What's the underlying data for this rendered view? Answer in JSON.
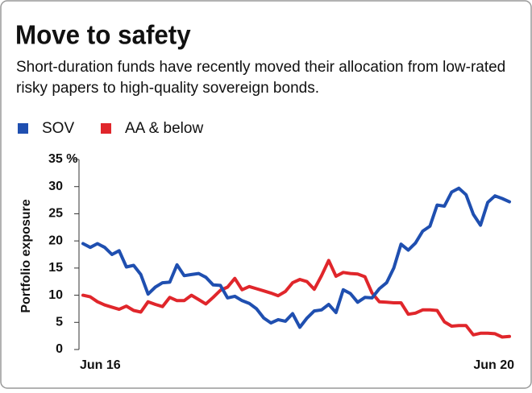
{
  "chart_data": {
    "type": "line",
    "title": "Move to safety",
    "subtitle": [
      "Short-duration funds have recently moved their allocation from low-rated",
      "risky papers to high-quality sovereign bonds."
    ],
    "y_label": "Portfolio exposure",
    "categories": [
      "Jun 16",
      null,
      null,
      null,
      null,
      null,
      null,
      null,
      null,
      null,
      null,
      null,
      null,
      null,
      null,
      null,
      null,
      null,
      null,
      null,
      null,
      null,
      null,
      null,
      null,
      null,
      null,
      null,
      null,
      null,
      null,
      null,
      null,
      null,
      null,
      null,
      null,
      null,
      null,
      null,
      null,
      null,
      null,
      null,
      null,
      null,
      null,
      null,
      null,
      null,
      null,
      null,
      null,
      null,
      null,
      null,
      null,
      null,
      null,
      "Jun 20"
    ],
    "series": [
      {
        "name": "SOV",
        "color": "#1f4fb0",
        "values": [
          19.5,
          18.8,
          19.5,
          18.8,
          17.5,
          18.2,
          15.2,
          15.5,
          13.8,
          10.2,
          11.5,
          12.3,
          12.4,
          15.6,
          13.6,
          13.8,
          14.0,
          13.3,
          11.9,
          11.8,
          9.5,
          9.8,
          9.0,
          8.5,
          7.5,
          5.8,
          4.9,
          5.5,
          5.2,
          6.6,
          4.1,
          5.8,
          7.1,
          7.3,
          8.3,
          6.8,
          11.0,
          10.3,
          8.7,
          9.6,
          9.5,
          11.2,
          12.3,
          15.0,
          19.4,
          18.3,
          19.6,
          21.8,
          22.7,
          26.6,
          26.4,
          29.0,
          29.7,
          28.5,
          24.9,
          22.9,
          27.1,
          28.3,
          27.8,
          27.2
        ]
      },
      {
        "name": "AA & below",
        "color": "#e0262b",
        "values": [
          10.0,
          9.7,
          8.8,
          8.2,
          7.8,
          7.4,
          8.0,
          7.2,
          6.9,
          8.8,
          8.3,
          7.9,
          9.6,
          9.0,
          9.0,
          10.0,
          9.2,
          8.4,
          9.6,
          10.9,
          11.5,
          13.1,
          11.0,
          11.6,
          11.2,
          10.8,
          10.4,
          9.9,
          10.7,
          12.3,
          12.9,
          12.5,
          11.1,
          13.6,
          16.4,
          13.5,
          14.2,
          14.0,
          13.9,
          13.4,
          10.4,
          8.8,
          8.7,
          8.6,
          8.6,
          6.5,
          6.7,
          7.3,
          7.3,
          7.2,
          5.1,
          4.3,
          4.4,
          4.4,
          2.7,
          3.0,
          3.0,
          2.9,
          2.3,
          2.4
        ]
      }
    ],
    "ylim": [
      0,
      35
    ],
    "yticks": [
      0,
      5,
      10,
      15,
      20,
      25,
      30,
      {
        "value": 35,
        "label": "35 %"
      }
    ],
    "grid": false
  }
}
